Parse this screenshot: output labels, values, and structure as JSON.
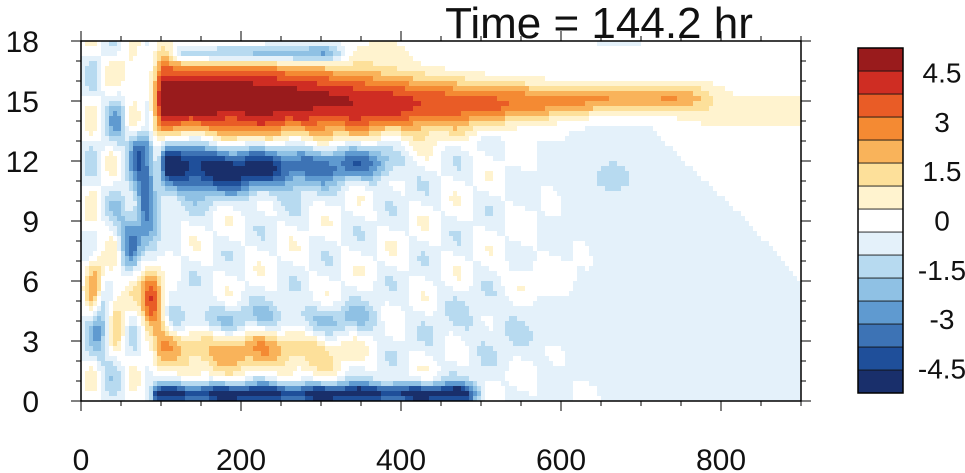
{
  "chart_data": {
    "type": "heatmap",
    "title": "Time = 144.2 hr",
    "xlabel": "",
    "ylabel": "",
    "xlim": [
      0,
      900
    ],
    "ylim": [
      0,
      18
    ],
    "x_ticks": [
      0,
      200,
      400,
      600,
      800
    ],
    "x_tick_labels": [
      "0",
      "200",
      "400",
      "600",
      "800"
    ],
    "y_ticks": [
      0,
      3,
      6,
      9,
      12,
      15,
      18
    ],
    "y_tick_labels": [
      "0",
      "3",
      "6",
      "9",
      "12",
      "15",
      "18"
    ],
    "grid": false,
    "legend": "right",
    "colorbar": {
      "min": -5.25,
      "max": 5.25,
      "levels": [
        -5.25,
        -4.5,
        -3.75,
        -3,
        -2.25,
        -1.5,
        -0.75,
        0,
        0.75,
        1.5,
        2.25,
        3,
        3.75,
        4.5,
        5.25
      ],
      "tick_values": [
        4.5,
        3,
        1.5,
        0,
        -1.5,
        -3,
        -4.5
      ],
      "tick_labels": [
        "4.5",
        "3",
        "1.5",
        "0",
        "-1.5",
        "-3",
        "-4.5"
      ],
      "colors": [
        "#192f6b",
        "#1f4f9a",
        "#3d73b5",
        "#5f9ad0",
        "#8fc1e4",
        "#b7daf0",
        "#e4f1fa",
        "#ffffff",
        "#fff3cf",
        "#fde09a",
        "#f9b35a",
        "#f48a33",
        "#e95c26",
        "#cf2d23",
        "#991b1c"
      ]
    },
    "features": [
      {
        "name": "upper-red-jet",
        "x_start": 85,
        "x_end": 760,
        "y_center": 15,
        "y_halfwidth_start": 1.5,
        "y_halfwidth_end": 0.35,
        "amplitude_start": 6,
        "amplitude_end": 2.2
      },
      {
        "name": "lower-blue-jet",
        "x_start": 95,
        "x_end": 385,
        "y_center": 11.8,
        "y_halfwidth_start": 1.2,
        "y_halfwidth_end": 0.6,
        "amplitude_start": -5.8,
        "amplitude_end": -2.5
      },
      {
        "name": "top-blue-edge",
        "x_start": 80,
        "x_end": 330,
        "y_center": 17.4,
        "amplitude": -3.8
      },
      {
        "name": "surface-blue",
        "x_start": 85,
        "x_end": 480,
        "y_center": 0.35,
        "amplitude": -4.8
      },
      {
        "name": "low-orange-band",
        "x_start": 80,
        "x_end": 350,
        "y_center": 2.6,
        "amplitude": 2.6
      },
      {
        "name": "front-column",
        "x_start": 0,
        "x_end": 95,
        "y_min": 0,
        "y_max": 18
      }
    ]
  }
}
